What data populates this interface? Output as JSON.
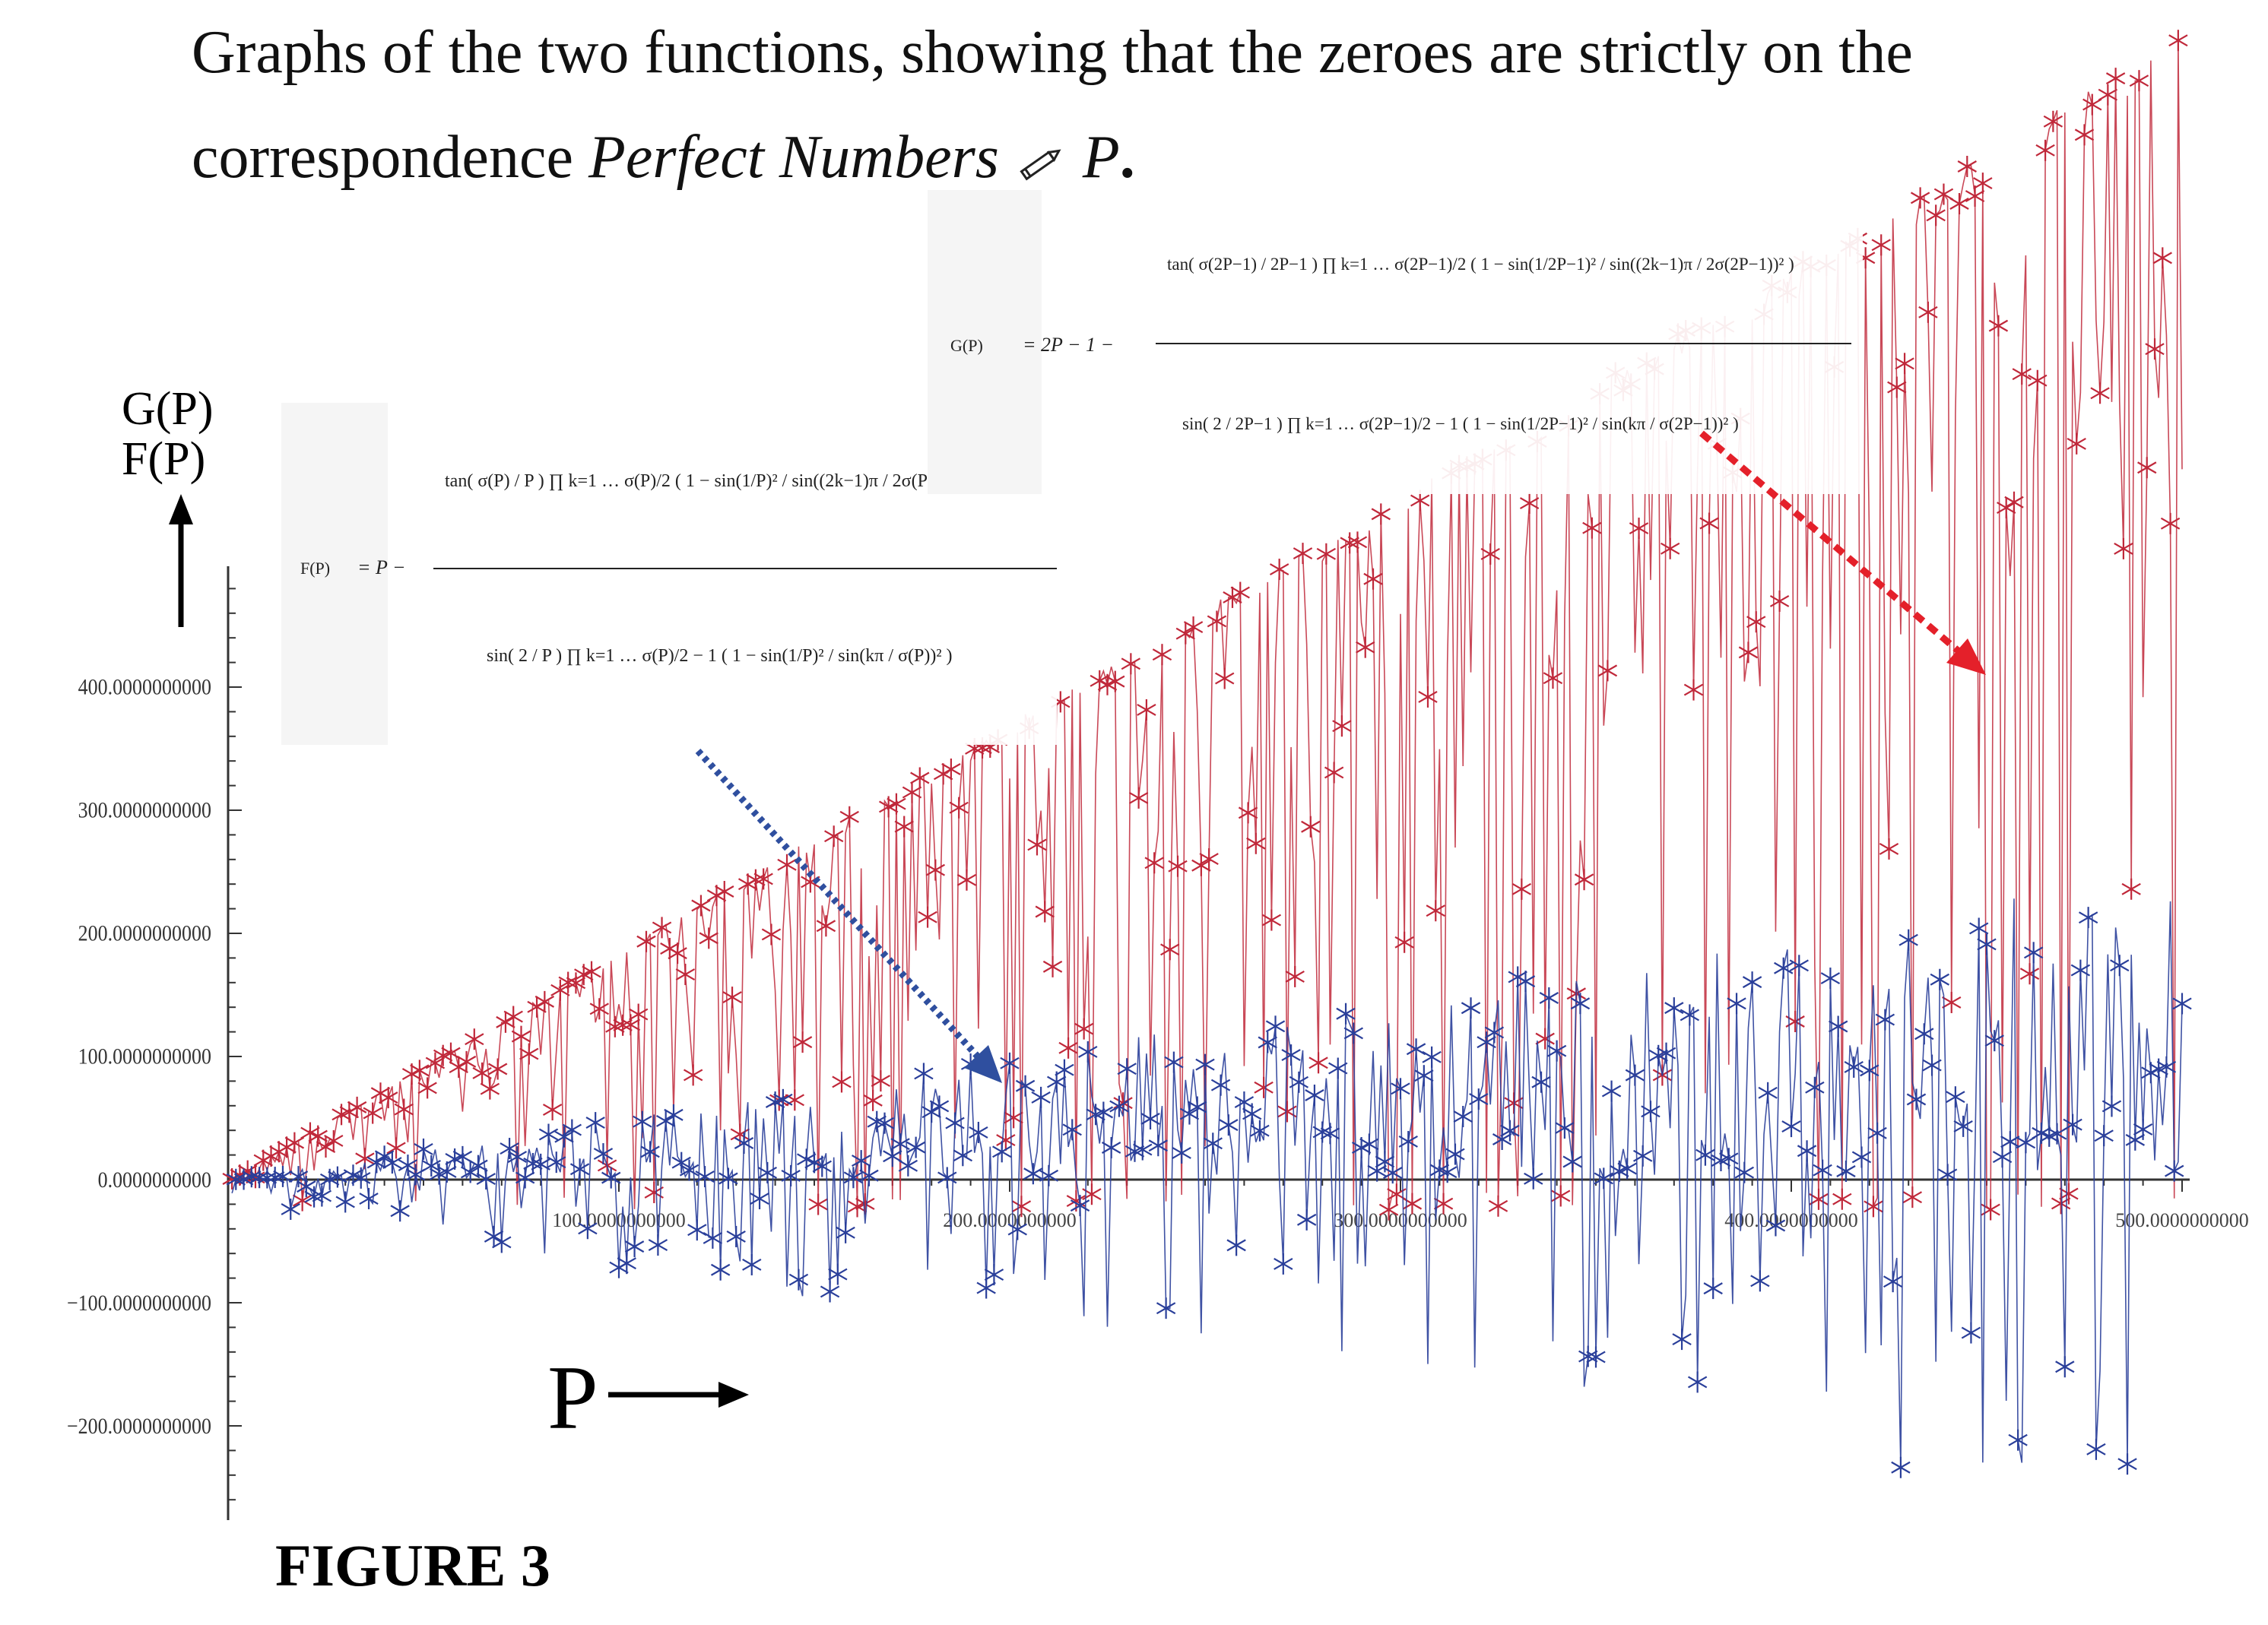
{
  "caption": {
    "line1": "Graphs of the two functions, showing that the zeroes are strictly on the",
    "line2_plain": "correspondence ",
    "line2_italic": "Perfect Numbers",
    "line2_tail_italic": "P",
    "line2_end": "."
  },
  "figure_label": "FIGURE 3",
  "axis_labels": {
    "y_top": "G(P)",
    "y_bottom": "F(P)",
    "x": "P"
  },
  "formulas": {
    "F_name": "F(P)",
    "G_name": "G(P)"
  },
  "colors": {
    "red_series": "#c0283a",
    "blue_series": "#2a3f9a",
    "red_arrow": "#e4202a",
    "blue_arrow": "#2f4f9f",
    "axis": "#333333"
  },
  "chart_data": {
    "type": "scatter",
    "title": "",
    "xlabel": "P",
    "ylabel": "G(P) F(P)",
    "x_range": [
      0,
      500
    ],
    "ylim": [
      -260,
      470
    ],
    "x_ticks": [
      "100.0000000000",
      "200.0000000000",
      "300.0000000000",
      "400.0000000000",
      "500.0000000000"
    ],
    "x_tick_values": [
      100,
      200,
      300,
      400,
      500
    ],
    "y_ticks": [
      "400.0000000000",
      "300.0000000000",
      "200.0000000000",
      "100.0000000000",
      "0.0000000000",
      "−100.0000000000",
      "−200.0000000000"
    ],
    "y_tick_values": [
      400,
      300,
      200,
      100,
      0,
      -100,
      -200
    ],
    "series": [
      {
        "name": "G(P)",
        "marker": "star",
        "color": "#c0283a",
        "envelope": "y ≤ 2P − 1"
      },
      {
        "name": "F(P)",
        "marker": "star",
        "color": "#2a3f9a",
        "envelope": "−260 ≤ y ≤ 260"
      }
    ]
  }
}
